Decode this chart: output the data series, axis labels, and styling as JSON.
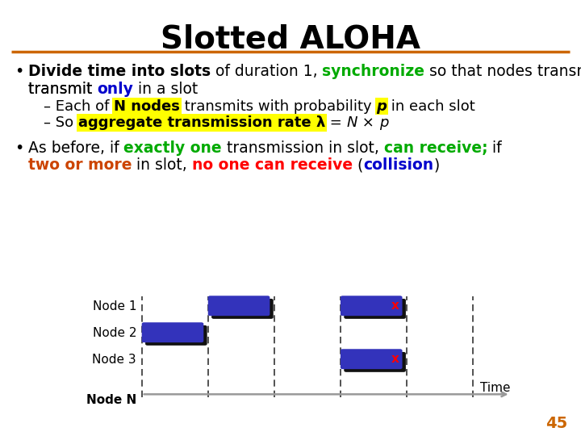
{
  "title": "Slotted ALOHA",
  "title_fontsize": 28,
  "title_fontweight": "bold",
  "bg_color": "#ffffff",
  "divider_color": "#cc6600",
  "page_number": "45",
  "page_number_color": "#cc6600",
  "bullet1_parts": [
    {
      "text": "Divide time into slots",
      "bold": true,
      "color": "#000000"
    },
    {
      "text": " of duration 1, ",
      "bold": false,
      "color": "#000000"
    },
    {
      "text": "synchronize",
      "bold": true,
      "color": "#00aa00"
    },
    {
      "text": " so that nodes transmit ",
      "bold": false,
      "color": "#000000"
    },
    {
      "text": "only",
      "bold": true,
      "color": "#0000cc"
    },
    {
      "text": " in a slot",
      "bold": false,
      "color": "#000000"
    }
  ],
  "sub1": [
    {
      "text": "– Each of ",
      "bold": false,
      "color": "#000000"
    },
    {
      "text": "N nodes",
      "bold": true,
      "color": "#000000",
      "highlight": "#ffff00"
    },
    {
      "text": " transmits with probability ",
      "bold": false,
      "color": "#000000"
    },
    {
      "text": "p",
      "bold": true,
      "italic": true,
      "color": "#000000",
      "highlight": "#ffff00"
    },
    {
      "text": " in each slot",
      "bold": false,
      "color": "#000000"
    }
  ],
  "sub2": [
    {
      "text": "– So ",
      "bold": false,
      "color": "#000000"
    },
    {
      "text": "aggregate transmission rate λ",
      "bold": true,
      "color": "#000000",
      "highlight": "#ffff00"
    },
    {
      "text": " = ",
      "bold": false,
      "color": "#000000"
    },
    {
      "text": "N",
      "bold": false,
      "italic": true,
      "color": "#000000"
    },
    {
      "text": " × ",
      "bold": false,
      "color": "#000000"
    },
    {
      "text": "p",
      "bold": false,
      "italic": true,
      "color": "#000000"
    }
  ],
  "bullet2_line1": [
    {
      "text": "As before, if ",
      "bold": false,
      "color": "#000000"
    },
    {
      "text": "exactly one",
      "bold": true,
      "color": "#00aa00"
    },
    {
      "text": " transmission in slot, ",
      "bold": false,
      "color": "#000000"
    },
    {
      "text": "can receive;",
      "bold": true,
      "color": "#00aa00"
    },
    {
      "text": " if",
      "bold": false,
      "color": "#000000"
    }
  ],
  "bullet2_line2": [
    {
      "text": "two or more",
      "bold": true,
      "color": "#cc4400"
    },
    {
      "text": " in slot, ",
      "bold": false,
      "color": "#000000"
    },
    {
      "text": "no one can receive",
      "bold": true,
      "color": "#ff0000"
    },
    {
      "text": " (",
      "bold": false,
      "color": "#000000"
    },
    {
      "text": "collision",
      "bold": true,
      "color": "#0000cc"
    },
    {
      "text": ")",
      "bold": false,
      "color": "#000000"
    }
  ],
  "node_labels": [
    "Node 1",
    "Node 2",
    "Node 3",
    "..."
  ],
  "node_n_label": "Node N",
  "time_label": "Time",
  "box_color_blue": "#3333cc",
  "box_color_black": "#111111"
}
